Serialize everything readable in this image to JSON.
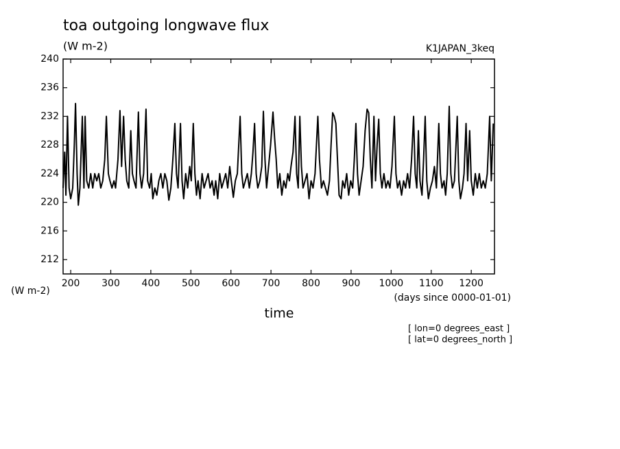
{
  "chart_data": {
    "type": "line",
    "title": "toa outgoing longwave flux",
    "subtitle": "(W m-2)",
    "experiment": "K1JAPAN_3keq",
    "ylabel": "(W m-2)",
    "xunits": "(days since 0000-01-01)",
    "xlabel": "time",
    "annotations": [
      "[ lon=0 degrees_east ]",
      "[ lat=0 degrees_north ]"
    ],
    "xlim": [
      181,
      1258
    ],
    "ylim": [
      210,
      240
    ],
    "xticks": [
      200,
      300,
      400,
      500,
      600,
      700,
      800,
      900,
      1000,
      1100,
      1200
    ],
    "yticks": [
      212,
      216,
      220,
      224,
      228,
      232,
      236,
      240
    ],
    "grid": false,
    "color": "#000000",
    "x": [
      181,
      185,
      188,
      192,
      196,
      200,
      205,
      209,
      212,
      216,
      219,
      223,
      229,
      233,
      236,
      240,
      245,
      250,
      255,
      260,
      265,
      270,
      275,
      280,
      285,
      289,
      294,
      298,
      303,
      308,
      312,
      318,
      323,
      327,
      332,
      336,
      340,
      345,
      350,
      354,
      358,
      363,
      369,
      373,
      377,
      382,
      388,
      392,
      397,
      401,
      405,
      410,
      415,
      420,
      425,
      430,
      435,
      440,
      445,
      450,
      455,
      460,
      464,
      468,
      474,
      478,
      482,
      487,
      492,
      497,
      501,
      506,
      510,
      514,
      518,
      523,
      528,
      533,
      538,
      543,
      548,
      553,
      558,
      562,
      567,
      572,
      577,
      582,
      587,
      592,
      597,
      601,
      606,
      611,
      616,
      623,
      627,
      631,
      636,
      641,
      646,
      651,
      655,
      659,
      663,
      667,
      672,
      677,
      681,
      685,
      689,
      694,
      699,
      705,
      709,
      713,
      717,
      722,
      727,
      732,
      737,
      742,
      746,
      750,
      755,
      760,
      764,
      768,
      772,
      776,
      780,
      785,
      790,
      795,
      800,
      805,
      810,
      817,
      821,
      826,
      831,
      836,
      841,
      846,
      850,
      854,
      858,
      862,
      866,
      870,
      875,
      879,
      884,
      889,
      894,
      899,
      904,
      908,
      912,
      916,
      920,
      925,
      930,
      935,
      940,
      944,
      948,
      952,
      957,
      961,
      965,
      969,
      973,
      977,
      982,
      987,
      992,
      997,
      1002,
      1008,
      1012,
      1016,
      1021,
      1026,
      1031,
      1036,
      1041,
      1046,
      1051,
      1056,
      1060,
      1064,
      1068,
      1072,
      1077,
      1081,
      1085,
      1089,
      1093,
      1098,
      1103,
      1108,
      1113,
      1119,
      1123,
      1127,
      1132,
      1136,
      1140,
      1145,
      1149,
      1153,
      1158,
      1165,
      1169,
      1173,
      1178,
      1182,
      1187,
      1191,
      1196,
      1200,
      1205,
      1210,
      1215,
      1220,
      1225,
      1230,
      1235,
      1240,
      1246,
      1250,
      1255
    ],
    "values": [
      222,
      227,
      221,
      232,
      222,
      220.5,
      222,
      228,
      233.8,
      224,
      219.6,
      222,
      232,
      222,
      232,
      223,
      222,
      224,
      222,
      224,
      223,
      224,
      222,
      223,
      226,
      232,
      224,
      223,
      222,
      223,
      222,
      226,
      232.8,
      225,
      232,
      226,
      223,
      222,
      230,
      224,
      223,
      222,
      232.6,
      224,
      222,
      224,
      233,
      223,
      222,
      224,
      220.5,
      222,
      221,
      223,
      224,
      222,
      224,
      223,
      220.3,
      222,
      226,
      231,
      224,
      222,
      231,
      223,
      220.5,
      224,
      222,
      225,
      223,
      231,
      224,
      221,
      223,
      220.5,
      224,
      222,
      223,
      224,
      222,
      223,
      221,
      223,
      220.5,
      224,
      222,
      223,
      224,
      222,
      225,
      223,
      220.7,
      223,
      224,
      232,
      224,
      222,
      223,
      224,
      222,
      224,
      227,
      231,
      224,
      222,
      223,
      225,
      232.7,
      226,
      222,
      225,
      228,
      232.6,
      229,
      226,
      222,
      224,
      221,
      223,
      222,
      224,
      223,
      225,
      227,
      232,
      224,
      222,
      232,
      225,
      222,
      223,
      224,
      220.5,
      223,
      222,
      224,
      232,
      226,
      222,
      223,
      222,
      221,
      223,
      228,
      232.5,
      232,
      231,
      226,
      221,
      220.5,
      223,
      222,
      224,
      221,
      223,
      222,
      226,
      231,
      224,
      221,
      223,
      225,
      230,
      233,
      232.5,
      226,
      222,
      232,
      223,
      228,
      231.6,
      224,
      222,
      224,
      222,
      223,
      222,
      225,
      232,
      224,
      222,
      223,
      221,
      223,
      222,
      224,
      222,
      226,
      232,
      224,
      222,
      230,
      223,
      221,
      226,
      232,
      223,
      220.5,
      222,
      223,
      225,
      222,
      231,
      224,
      222,
      223,
      221,
      224,
      233.4,
      224,
      222,
      223,
      232,
      223,
      220.5,
      222,
      224,
      231,
      223,
      230,
      223,
      221,
      224,
      222,
      224,
      222,
      223,
      222,
      224,
      232,
      223,
      231
    ]
  }
}
